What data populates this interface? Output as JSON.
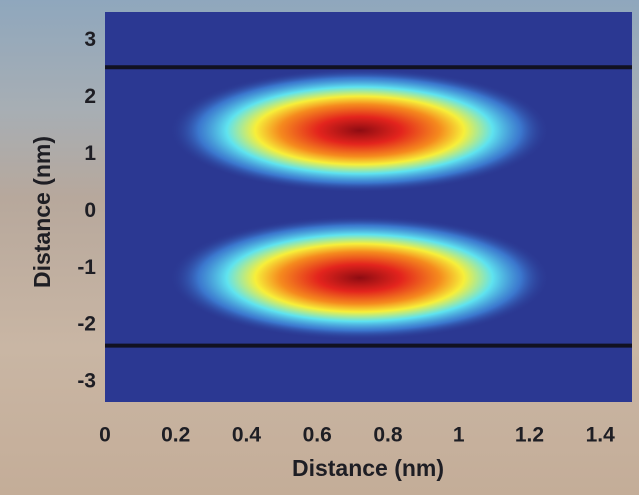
{
  "chart_data": {
    "type": "heatmap",
    "xlabel": "Distance (nm)",
    "ylabel": "Distance (nm)",
    "xlim": [
      0,
      1.49
    ],
    "ylim": [
      -3.35,
      3.5
    ],
    "xticks": [
      0,
      0.2,
      0.4,
      0.6,
      0.8,
      1,
      1.2,
      1.4
    ],
    "yticks": [
      -3,
      -2,
      -1,
      0,
      1,
      2,
      3
    ],
    "peaks": {
      "x": [
        0.72,
        0.72
      ],
      "y": [
        1.42,
        -1.17
      ]
    },
    "boundaries": [
      2.53,
      -2.36
    ],
    "background": "#2b3892",
    "line_color": "#111122"
  }
}
